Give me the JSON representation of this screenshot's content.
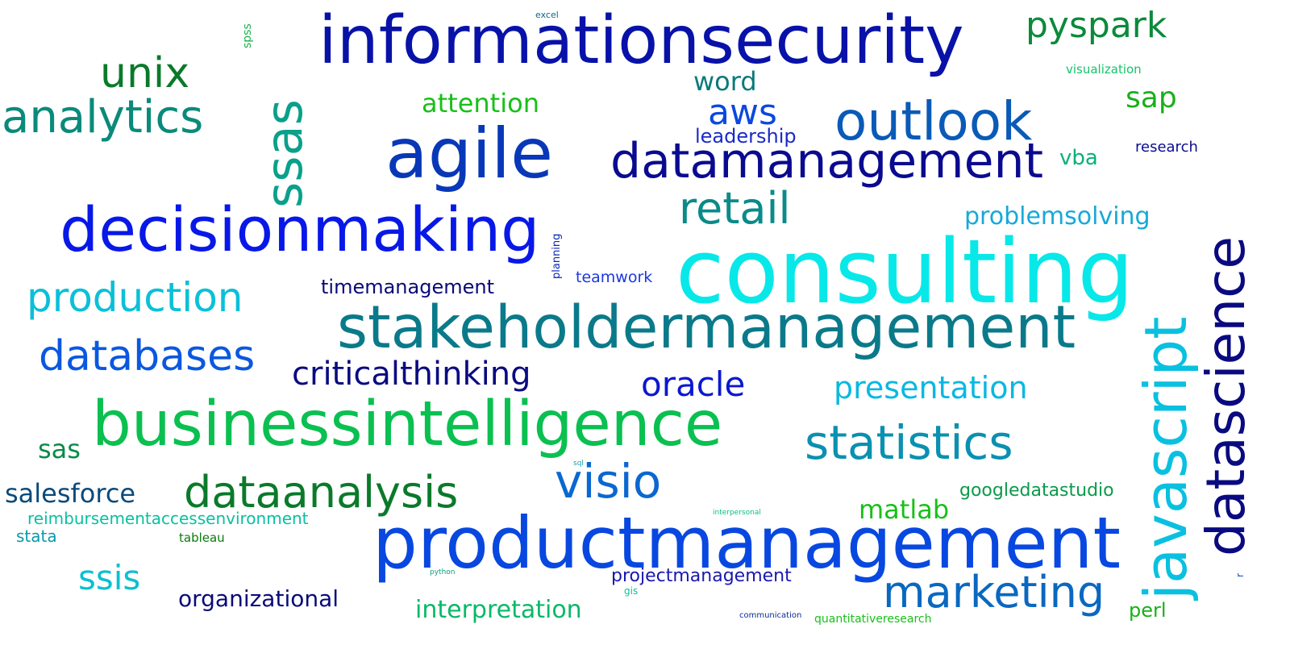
{
  "words": {
    "informationsecurity": {
      "text": "informationsecurity",
      "color": "#0812a8"
    },
    "pyspark": {
      "text": "pyspark",
      "color": "#0b8a3a"
    },
    "excel": {
      "text": "excel",
      "color": "#0b6a8a"
    },
    "spss": {
      "text": "spss",
      "color": "#16b04a"
    },
    "visualization": {
      "text": "visualization",
      "color": "#12c46a"
    },
    "unix": {
      "text": "unix",
      "color": "#0a7a2a"
    },
    "analytics": {
      "text": "analytics",
      "color": "#0a8a7a"
    },
    "ssas": {
      "text": "ssas",
      "color": "#0aa08a"
    },
    "attention": {
      "text": "attention",
      "color": "#18c018"
    },
    "word": {
      "text": "word",
      "color": "#0a7a7a"
    },
    "aws": {
      "text": "aws",
      "color": "#0a48e0"
    },
    "sap": {
      "text": "sap",
      "color": "#18b018"
    },
    "outlook": {
      "text": "outlook",
      "color": "#0a5ab8"
    },
    "leadership": {
      "text": "leadership",
      "color": "#1a2ac8"
    },
    "agile": {
      "text": "agile",
      "color": "#0838b8"
    },
    "datamanagement": {
      "text": "datamanagement",
      "color": "#0a0a90"
    },
    "research": {
      "text": "research",
      "color": "#0a0a90"
    },
    "vba": {
      "text": "vba",
      "color": "#0ab07a"
    },
    "retail": {
      "text": "retail",
      "color": "#0a8a8a"
    },
    "decisionmaking": {
      "text": "decisionmaking",
      "color": "#0818e8"
    },
    "planning": {
      "text": "planning",
      "color": "#0a28b8"
    },
    "problemsolving": {
      "text": "problemsolving",
      "color": "#18a8d8"
    },
    "consulting": {
      "text": "consulting",
      "color": "#08e8e8"
    },
    "datascience": {
      "text": "datascience",
      "color": "#0a0a80"
    },
    "javascript": {
      "text": "javascript",
      "color": "#0ac0e0"
    },
    "production": {
      "text": "production",
      "color": "#0ac0d8"
    },
    "timemanagement": {
      "text": "timemanagement",
      "color": "#0a0a78"
    },
    "teamwork": {
      "text": "teamwork",
      "color": "#1a38e0"
    },
    "stakeholdermanagement": {
      "text": "stakeholdermanagement",
      "color": "#0a7a8a"
    },
    "databases": {
      "text": "databases",
      "color": "#0a58e0"
    },
    "criticalthinking": {
      "text": "criticalthinking",
      "color": "#0a0a80"
    },
    "oracle": {
      "text": "oracle",
      "color": "#0a18d0"
    },
    "presentation": {
      "text": "presentation",
      "color": "#0ab8e0"
    },
    "businessintelligence": {
      "text": "businessintelligence",
      "color": "#0ac050"
    },
    "statistics": {
      "text": "statistics",
      "color": "#0a90b0"
    },
    "sas": {
      "text": "sas",
      "color": "#0a8a4a"
    },
    "dataanalysis": {
      "text": "dataanalysis",
      "color": "#0a7a2a"
    },
    "visio": {
      "text": "visio",
      "color": "#0a68d0"
    },
    "salesforce": {
      "text": "salesforce",
      "color": "#0a4a7a"
    },
    "sql": {
      "text": "sql",
      "color": "#18a0b0"
    },
    "matlab": {
      "text": "matlab",
      "color": "#18c018"
    },
    "googledatastudio": {
      "text": "googledatastudio",
      "color": "#0a9a4a"
    },
    "reimbursementaccessenvironment": {
      "text": "reimbursementaccessenvironment",
      "color": "#0ac0a0"
    },
    "interpersonal": {
      "text": "interpersonal",
      "color": "#0ac080"
    },
    "stata": {
      "text": "stata",
      "color": "#0a98b0"
    },
    "tableau": {
      "text": "tableau",
      "color": "#0a7a0a"
    },
    "productmanagement": {
      "text": "productmanagement",
      "color": "#0848e0"
    },
    "ssis": {
      "text": "ssis",
      "color": "#0ac0d0"
    },
    "python": {
      "text": "python",
      "color": "#0aa07a"
    },
    "projectmanagement": {
      "text": "projectmanagement",
      "color": "#1a18b0"
    },
    "marketing": {
      "text": "marketing",
      "color": "#0a68c0"
    },
    "r": {
      "text": "r",
      "color": "#0a48c0"
    },
    "organizational": {
      "text": "organizational",
      "color": "#0a0a78"
    },
    "gis": {
      "text": "gis",
      "color": "#0ac0a0"
    },
    "interpretation": {
      "text": "interpretation",
      "color": "#0ab868"
    },
    "communication": {
      "text": "communication",
      "color": "#0a2a9a"
    },
    "quantitativeresearch": {
      "text": "quantitativeresearch",
      "color": "#18c018"
    },
    "perl": {
      "text": "perl",
      "color": "#18b018"
    }
  }
}
